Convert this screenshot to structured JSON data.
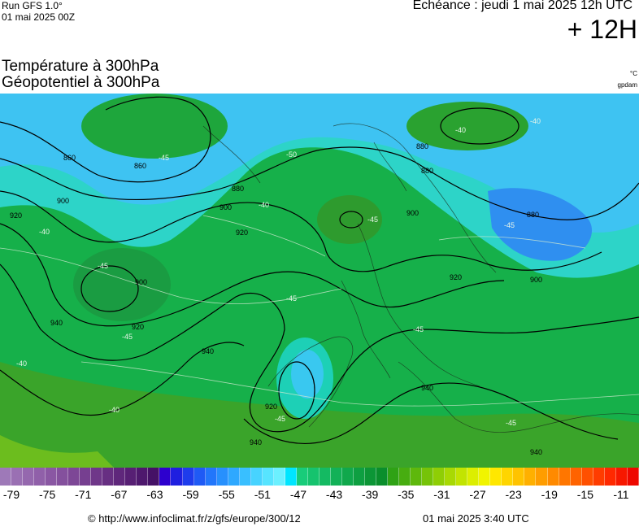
{
  "header": {
    "run_title": "Run GFS 1.0°",
    "run_date": "01 mai 2025 00Z",
    "echeance": "Echéance : jeudi 1 mai 2025 12h UTC",
    "lead_time": "+ 12H"
  },
  "titles": {
    "line1": "Température à 300hPa",
    "line2": "Géopotentiel à 300hPa",
    "unit_temp": "°C",
    "unit_geo": "gpdam"
  },
  "map": {
    "region": "europe",
    "contour_labels": [
      "860",
      "860",
      "880",
      "880",
      "880",
      "880",
      "900",
      "900",
      "900",
      "900",
      "900",
      "920",
      "920",
      "920",
      "920",
      "920",
      "940",
      "940",
      "940",
      "940",
      "940"
    ],
    "temp_labels": [
      "-40",
      "-45",
      "-50",
      "-45",
      "-40",
      "-45",
      "-45",
      "-40",
      "-45",
      "-40",
      "-45",
      "-40",
      "-45",
      "-45",
      "-45",
      "-40"
    ]
  },
  "scale": {
    "colors": [
      "#9e79b8",
      "#9a70b3",
      "#9568ae",
      "#9060a9",
      "#8a57a3",
      "#84509d",
      "#7d4796",
      "#763f90",
      "#6f3789",
      "#672f82",
      "#5f277b",
      "#571f74",
      "#4e186d",
      "#451166",
      "#2d00ce",
      "#1f1fe0",
      "#1e3cec",
      "#1f5af5",
      "#2276fb",
      "#2790fd",
      "#2ea8ff",
      "#39bfff",
      "#47d3ff",
      "#57e4ff",
      "#6bf0ff",
      "#00e5ff",
      "#18cc7a",
      "#16c36e",
      "#14ba62",
      "#12b157",
      "#10a84c",
      "#0e9f41",
      "#0c9636",
      "#0a8e2c",
      "#2fa215",
      "#47ad10",
      "#5eb80c",
      "#76c308",
      "#8fce05",
      "#a8d903",
      "#c2e401",
      "#dcee00",
      "#f1f400",
      "#ffe700",
      "#ffd500",
      "#ffc300",
      "#ffb000",
      "#ff9d00",
      "#ff8a00",
      "#ff7600",
      "#ff6300",
      "#ff5000",
      "#ff3c00",
      "#ff2900",
      "#f71800",
      "#ee0800"
    ],
    "labels": [
      "-79",
      "-75",
      "-71",
      "-67",
      "-63",
      "-59",
      "-55",
      "-51",
      "-47",
      "-43",
      "-39",
      "-35",
      "-31",
      "-27",
      "-23",
      "-19",
      "-15",
      "-11"
    ]
  },
  "footer": {
    "url": "© http://www.infoclimat.fr/z/gfs/europe/300/12",
    "date": "01 mai 2025  3:40 UTC"
  }
}
